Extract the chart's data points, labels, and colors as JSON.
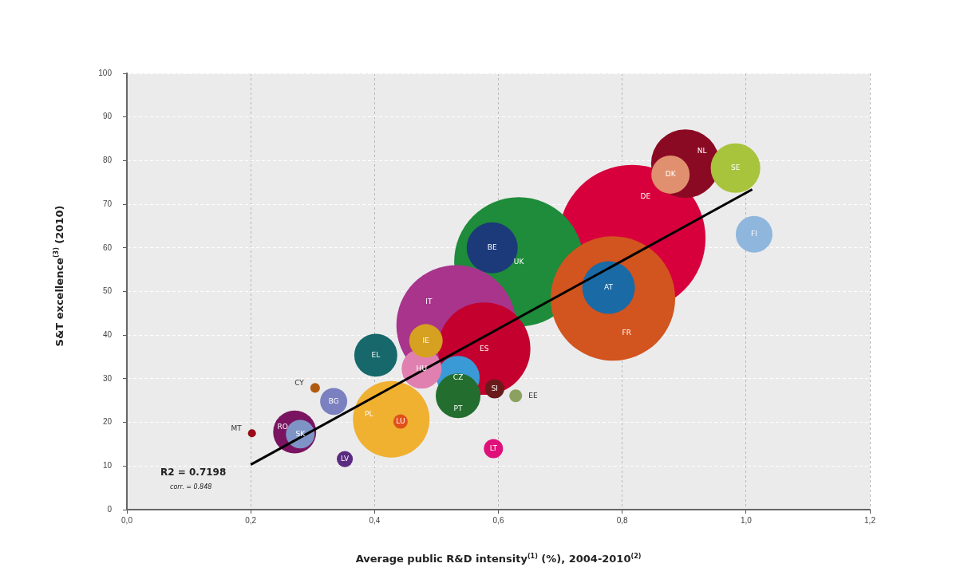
{
  "chart_data": {
    "type": "bubble",
    "xlabel": "Average public R&D intensity$^{(1)}$ (%), 2004-2010$^{(2)}$",
    "ylabel": "S&T excellence$^{(3)}$ (2010)",
    "relative": false,
    "xlim": [
      0,
      1.2
    ],
    "ylim": [
      0,
      100
    ],
    "xticks": [
      {
        "value": 0,
        "label": "0,0"
      },
      {
        "value": 0.2,
        "label": "0,2"
      },
      {
        "value": 0.4,
        "label": "0,4"
      },
      {
        "value": 0.6,
        "label": "0,6"
      },
      {
        "value": 0.8,
        "label": "0,8"
      },
      {
        "value": 1.0,
        "label": "1,0"
      },
      {
        "value": 1.2,
        "label": "1,2"
      }
    ],
    "yticks": [
      0,
      10,
      20,
      30,
      40,
      50,
      60,
      70,
      80,
      90,
      100
    ],
    "grid": true,
    "legend": false,
    "annotations": [
      "R2 = 0.7198",
      "corr. = 0.848"
    ],
    "series": [
      {
        "name": "DE",
        "color": "#d8003c",
        "x": [
          0.816
        ],
        "values": [
          62.2
        ],
        "sizes": [
          1
        ]
      },
      {
        "name": "UK",
        "color": "#1e8c3a",
        "x": [
          0.633
        ],
        "values": [
          56.8
        ],
        "sizes": [
          0.775
        ]
      },
      {
        "name": "FR",
        "color": "#d2541e",
        "x": [
          0.785
        ],
        "values": [
          48.4
        ],
        "sizes": [
          0.719
        ]
      },
      {
        "name": "IT",
        "color": "#a8348c",
        "x": [
          0.532
        ],
        "values": [
          42.3
        ],
        "sizes": [
          0.665
        ]
      },
      {
        "name": "ES",
        "color": "#c4002e",
        "x": [
          0.577
        ],
        "values": [
          36.9
        ],
        "sizes": [
          0.397
        ]
      },
      {
        "name": "PL",
        "color": "#f0b030",
        "x": [
          0.427
        ],
        "values": [
          20.7
        ],
        "sizes": [
          0.272
        ]
      },
      {
        "name": "NL",
        "color": "#8b0a23",
        "x": [
          0.902
        ],
        "values": [
          79.3
        ],
        "sizes": [
          0.218
        ]
      },
      {
        "name": "AT",
        "color": "#1a6aa6",
        "x": [
          0.778
        ],
        "values": [
          50.9
        ],
        "sizes": [
          0.129
        ]
      },
      {
        "name": "BE",
        "color": "#1c3a7a",
        "x": [
          0.59
        ],
        "values": [
          60.0
        ],
        "sizes": [
          0.121
        ]
      },
      {
        "name": "SE",
        "color": "#a8c43c",
        "x": [
          0.983
        ],
        "values": [
          78.3
        ],
        "sizes": [
          0.114
        ]
      },
      {
        "name": "EL",
        "color": "#16686a",
        "x": [
          0.402
        ],
        "values": [
          35.4
        ],
        "sizes": [
          0.086
        ]
      },
      {
        "name": "CZ",
        "color": "#3a9ad6",
        "x": [
          0.535
        ],
        "values": [
          30.3
        ],
        "sizes": [
          0.086
        ]
      },
      {
        "name": "RO",
        "color": "#7a1460",
        "x": [
          0.271
        ],
        "values": [
          17.8
        ],
        "sizes": [
          0.086
        ]
      },
      {
        "name": "PT",
        "color": "#236e2e",
        "x": [
          0.535
        ],
        "values": [
          26.1
        ],
        "sizes": [
          0.093
        ]
      },
      {
        "name": "HU",
        "color": "#e080b0",
        "x": [
          0.476
        ],
        "values": [
          32.3
        ],
        "sizes": [
          0.074
        ]
      },
      {
        "name": "DK",
        "color": "#e0906e",
        "x": [
          0.878
        ],
        "values": [
          76.8
        ],
        "sizes": [
          0.068
        ]
      },
      {
        "name": "FI",
        "color": "#8fb6dd",
        "x": [
          1.013
        ],
        "values": [
          63.1
        ],
        "sizes": [
          0.0625
        ]
      },
      {
        "name": "IE",
        "color": "#d6a020",
        "x": [
          0.483
        ],
        "values": [
          38.7
        ],
        "sizes": [
          0.052
        ]
      },
      {
        "name": "SK",
        "color": "#7e94c6",
        "x": [
          0.28
        ],
        "values": [
          17.3
        ],
        "sizes": [
          0.038
        ]
      },
      {
        "name": "BG",
        "color": "#7b80c0",
        "x": [
          0.334
        ],
        "values": [
          24.8
        ],
        "sizes": [
          0.034
        ]
      },
      {
        "name": "SI",
        "color": "#6a1a1a",
        "x": [
          0.594
        ],
        "values": [
          27.7
        ],
        "sizes": [
          0.017
        ]
      },
      {
        "name": "LT",
        "color": "#e0107a",
        "x": [
          0.592
        ],
        "values": [
          14.0
        ],
        "sizes": [
          0.017
        ]
      },
      {
        "name": "LV",
        "color": "#5a2a80",
        "x": [
          0.352
        ],
        "values": [
          11.6
        ],
        "sizes": [
          0.012
        ]
      },
      {
        "name": "LU",
        "color": "#e0501a",
        "x": [
          0.442
        ],
        "values": [
          20.2
        ],
        "sizes": [
          0.0096
        ]
      },
      {
        "name": "EE",
        "color": "#8ca060",
        "x": [
          0.628
        ],
        "values": [
          26.1
        ],
        "sizes": [
          0.0076
        ]
      },
      {
        "name": "CY",
        "color": "#b05a10",
        "x": [
          0.304
        ],
        "values": [
          27.9
        ],
        "sizes": [
          0.0043
        ]
      },
      {
        "name": "MT",
        "color": "#9a0a1a",
        "x": [
          0.202
        ],
        "values": [
          17.5
        ],
        "sizes": [
          0.003
        ]
      },
      {
        "type": "line",
        "color": "#000000",
        "marker": "none",
        "line_style": "solid",
        "x": [
          0.2,
          1.01
        ],
        "values": [
          10.3,
          73.4
        ]
      }
    ]
  }
}
